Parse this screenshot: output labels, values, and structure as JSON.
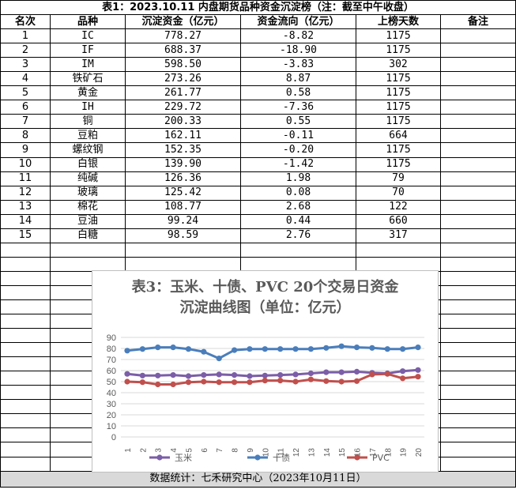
{
  "table": {
    "title": "表1：2023.10.11 内盘期货品种资金沉淀榜（注：截至中午收盘）",
    "headers": [
      "名次",
      "品种",
      "沉淀资金（亿元）",
      "资金流向（亿元）",
      "上榜天数",
      "备注"
    ],
    "rows": [
      [
        "1",
        "IC",
        "778.27",
        "-8.82",
        "1175"
      ],
      [
        "2",
        "IF",
        "688.37",
        "-18.90",
        "1175"
      ],
      [
        "3",
        "IM",
        "598.50",
        "-3.83",
        "302"
      ],
      [
        "4",
        "铁矿石",
        "273.26",
        "8.87",
        "1175"
      ],
      [
        "5",
        "黄金",
        "261.77",
        "0.58",
        "1175"
      ],
      [
        "6",
        "IH",
        "229.72",
        "-7.36",
        "1175"
      ],
      [
        "7",
        "铜",
        "200.33",
        "0.55",
        "1175"
      ],
      [
        "8",
        "豆粕",
        "162.11",
        "-0.11",
        "664"
      ],
      [
        "9",
        "螺纹钢",
        "152.35",
        "-0.20",
        "1175"
      ],
      [
        "10",
        "白银",
        "139.90",
        "-1.42",
        "1175"
      ],
      [
        "11",
        "纯碱",
        "126.36",
        "1.98",
        "79"
      ],
      [
        "12",
        "玻璃",
        "125.42",
        "0.08",
        "70"
      ],
      [
        "13",
        "棉花",
        "108.77",
        "2.68",
        "122"
      ],
      [
        "14",
        "豆油",
        "99.24",
        "0.44",
        "660"
      ],
      [
        "15",
        "白糖",
        "98.59",
        "2.76",
        "317"
      ]
    ],
    "footer": "数据统计：七禾研究中心（2023年10月11日）"
  },
  "chart_data": {
    "type": "line",
    "title": "表3：玉米、十债、PVC 20个交易日资金沉淀曲线图（单位：亿元）",
    "title_lines": [
      "表3：玉米、十债、PVC 20个交易日资金",
      "沉淀曲线图（单位：亿元）"
    ],
    "x": [
      "1",
      "2",
      "3",
      "4",
      "5",
      "6",
      "7",
      "8",
      "9",
      "10",
      "11",
      "12",
      "13",
      "14",
      "15",
      "16",
      "17",
      "18",
      "19",
      "20"
    ],
    "ylim": [
      0,
      90
    ],
    "yticks": [
      0,
      10,
      20,
      30,
      40,
      50,
      60,
      70,
      80,
      90
    ],
    "grid": true,
    "legend_position": "bottom",
    "series": [
      {
        "name": "玉米",
        "color": "#7b5ea7",
        "values": [
          57,
          55.5,
          55.5,
          56,
          55,
          56,
          56.5,
          56,
          55,
          55.5,
          56,
          56.5,
          57.5,
          58.5,
          58.5,
          59,
          58,
          57.5,
          59.5,
          60.5
        ]
      },
      {
        "name": "十债",
        "color": "#4a7ebb",
        "values": [
          78,
          79.5,
          81,
          81,
          79.5,
          77,
          71,
          78.5,
          79.5,
          79.5,
          79.5,
          79.5,
          79.5,
          80.5,
          82,
          81,
          80.5,
          79.5,
          79.5,
          81
        ]
      },
      {
        "name": "PVC",
        "color": "#c0504d",
        "values": [
          50,
          49.5,
          47.5,
          47.5,
          49.5,
          50,
          49.5,
          49.5,
          49.5,
          51,
          51,
          50,
          52,
          50.5,
          50,
          50.5,
          56.5,
          57,
          53,
          54.5
        ]
      }
    ]
  }
}
